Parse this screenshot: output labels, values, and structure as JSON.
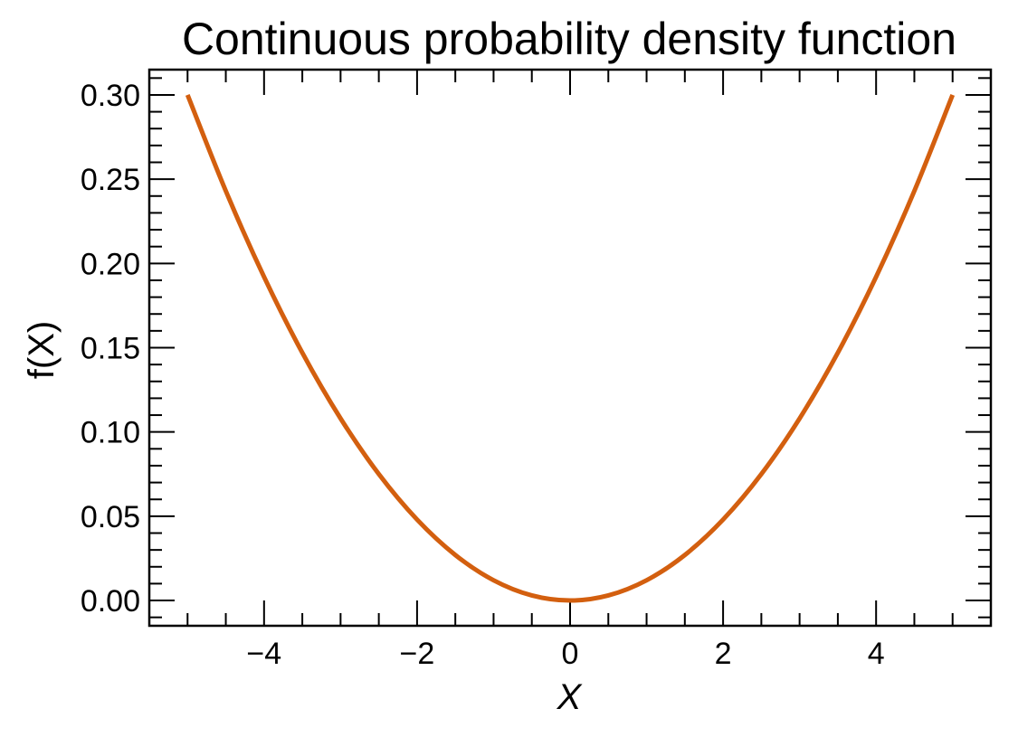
{
  "chart_data": {
    "type": "line",
    "title": "Continuous probability density function",
    "xlabel": "X",
    "ylabel": "f(X)",
    "xlim": [
      -5.5,
      5.5
    ],
    "ylim": [
      -0.015,
      0.315
    ],
    "x_ticks": [
      -4,
      -2,
      0,
      2,
      4
    ],
    "x_tick_labels": [
      "−4",
      "−2",
      "0",
      "2",
      "4"
    ],
    "x_minor_step": 0.5,
    "y_ticks": [
      0.0,
      0.05,
      0.1,
      0.15,
      0.2,
      0.25,
      0.3
    ],
    "y_tick_labels": [
      "0.00",
      "0.05",
      "0.10",
      "0.15",
      "0.20",
      "0.25",
      "0.30"
    ],
    "y_minor_step": 0.01,
    "grid": false,
    "series": [
      {
        "name": "f(X)",
        "color": "#d35f0f",
        "x": [
          -5.0,
          -4.5,
          -4.0,
          -3.5,
          -3.0,
          -2.5,
          -2.0,
          -1.5,
          -1.0,
          -0.5,
          0.0,
          0.5,
          1.0,
          1.5,
          2.0,
          2.5,
          3.0,
          3.5,
          4.0,
          4.5,
          5.0
        ],
        "y": [
          0.3,
          0.243,
          0.192,
          0.147,
          0.108,
          0.075,
          0.048,
          0.027,
          0.012,
          0.003,
          0.0,
          0.003,
          0.012,
          0.027,
          0.048,
          0.075,
          0.108,
          0.147,
          0.192,
          0.243,
          0.3
        ]
      }
    ]
  }
}
